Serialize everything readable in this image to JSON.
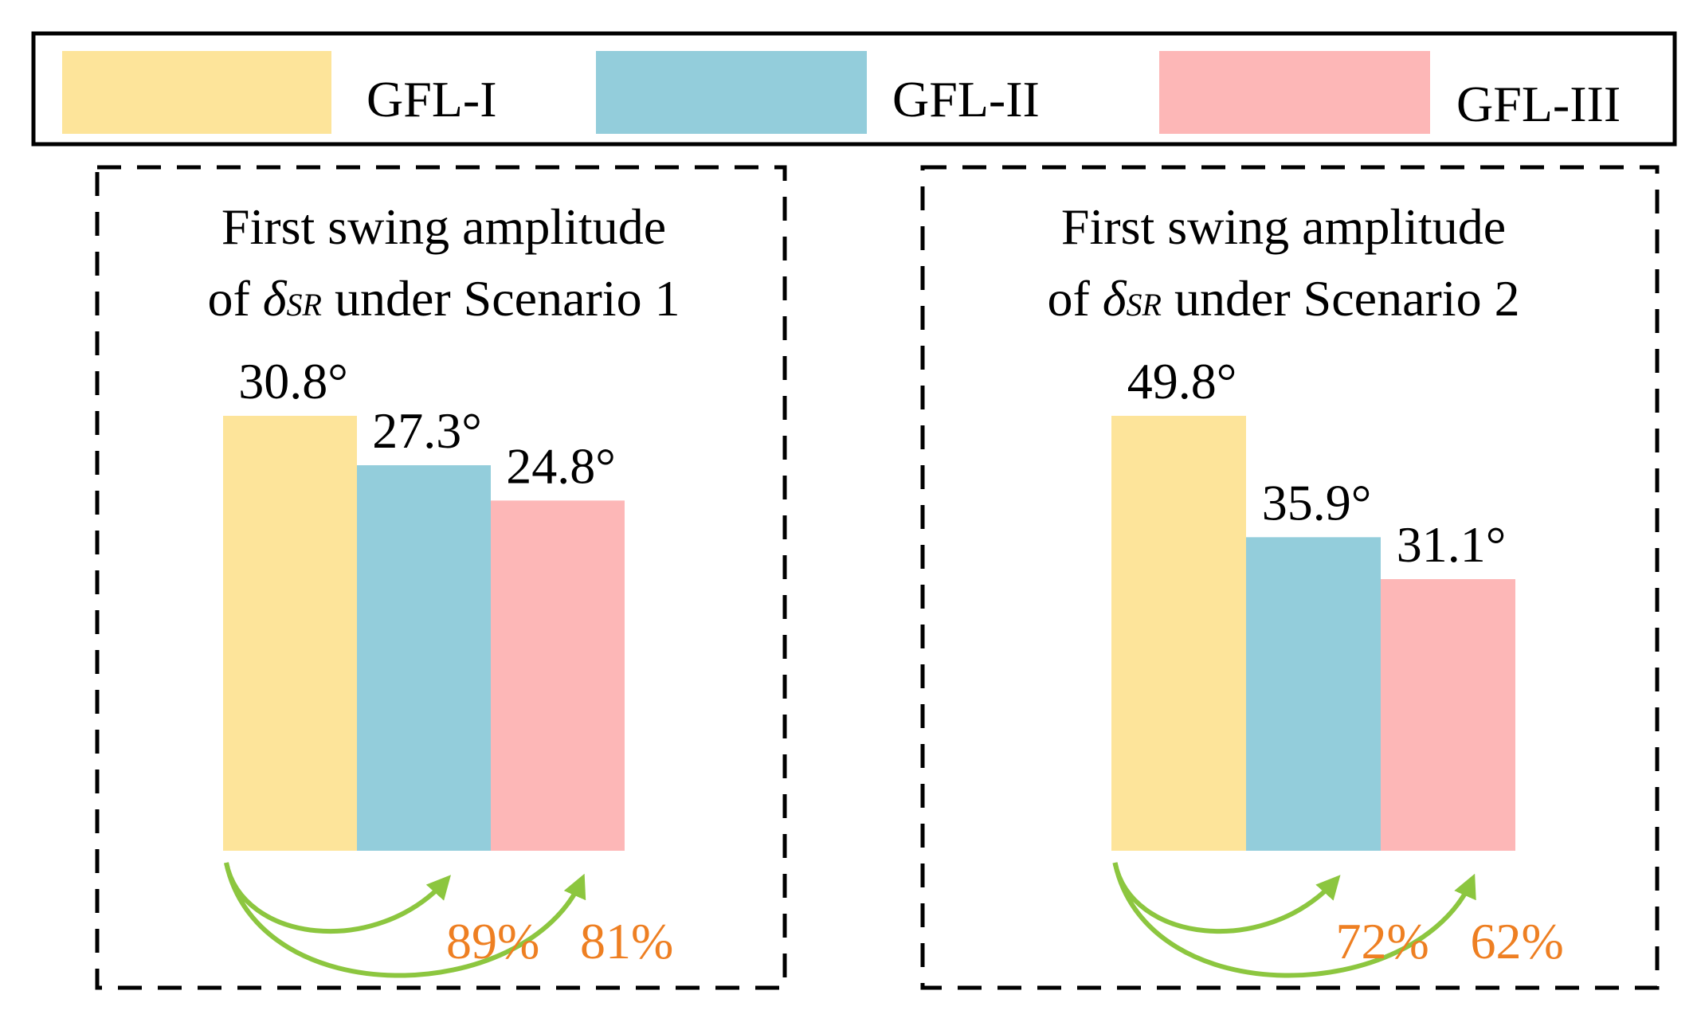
{
  "legend": {
    "items": [
      {
        "label": "GFL-I",
        "color": "#FDE49A"
      },
      {
        "label": "GFL-II",
        "color": "#93CDDB"
      },
      {
        "label": "GFL-III",
        "color": "#FDB7B7"
      }
    ]
  },
  "colors": {
    "ratio_text": "#EE7F22",
    "arrow": "#8CC63F",
    "frame": "#000000"
  },
  "chart_data": [
    {
      "type": "bar",
      "title_line1": "First swing amplitude",
      "title_line2_prefix": "of ",
      "title_symbol": "δ",
      "title_subscript": "SR",
      "title_line2_suffix": " under Scenario 1",
      "categories": [
        "GFL-I",
        "GFL-II",
        "GFL-III"
      ],
      "values": [
        30.8,
        27.3,
        24.8
      ],
      "value_labels": [
        "30.8°",
        "27.3°",
        "24.8°"
      ],
      "unit": "°",
      "ratios": [
        "89%",
        "81%"
      ],
      "ylim": [
        0,
        30.8
      ]
    },
    {
      "type": "bar",
      "title_line1": "First swing amplitude",
      "title_line2_prefix": "of ",
      "title_symbol": "δ",
      "title_subscript": "SR",
      "title_line2_suffix": " under Scenario 2",
      "categories": [
        "GFL-I",
        "GFL-II",
        "GFL-III"
      ],
      "values": [
        49.8,
        35.9,
        31.1
      ],
      "value_labels": [
        "49.8°",
        "35.9°",
        "31.1°"
      ],
      "unit": "°",
      "ratios": [
        "72%",
        "62%"
      ],
      "ylim": [
        0,
        49.8
      ]
    }
  ]
}
